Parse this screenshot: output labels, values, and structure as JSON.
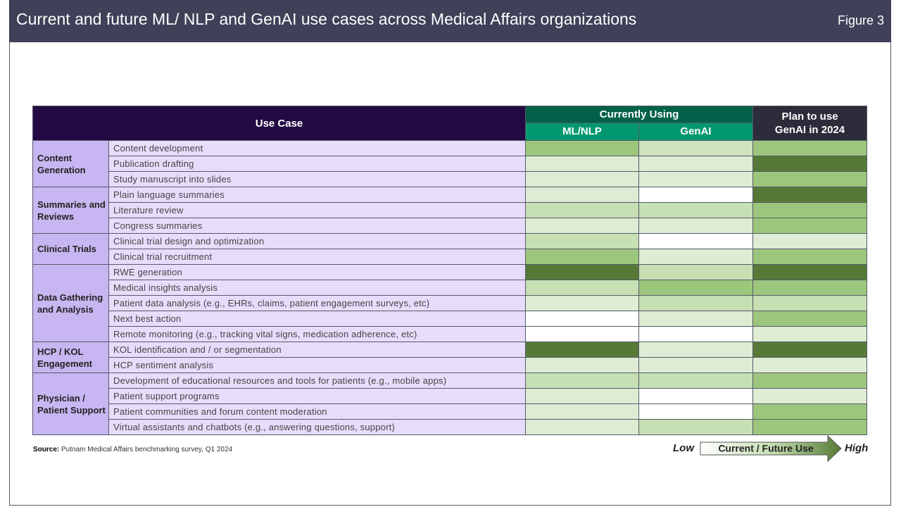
{
  "header": {
    "title": "Current and future ML/ NLP and GenAI use cases across Medical Affairs organizations",
    "figure": "Figure 3"
  },
  "table": {
    "header": {
      "use_case": "Use Case",
      "currently_using": "Currently Using",
      "ml_nlp": "ML/NLP",
      "genai": "GenAI",
      "plan": "Plan to use GenAI in 2024"
    },
    "groups": [
      {
        "name": "Content Generation",
        "rows": [
          {
            "use_case": "Content development",
            "ml_nlp": "#9dc67d",
            "genai": "#cfe3bf",
            "plan": "#9dc67d"
          },
          {
            "use_case": "Publication  drafting",
            "ml_nlp": "#deecd3",
            "genai": "#deecd3",
            "plan": "#567a36"
          },
          {
            "use_case": "Study manuscript into slides",
            "ml_nlp": "#deecd3",
            "genai": "#deecd3",
            "plan": "#9dc67d"
          }
        ]
      },
      {
        "name": "Summaries and Reviews",
        "rows": [
          {
            "use_case": "Plain language summaries",
            "ml_nlp": "#deecd3",
            "genai": "#ffffff",
            "plan": "#567a36"
          },
          {
            "use_case": "Literature review",
            "ml_nlp": "#c6dfb3",
            "genai": "#c6dfb3",
            "plan": "#9dc67d"
          },
          {
            "use_case": "Congress summaries",
            "ml_nlp": "#deecd3",
            "genai": "#deecd3",
            "plan": "#9dc67d"
          }
        ]
      },
      {
        "name": "Clinical Trials",
        "rows": [
          {
            "use_case": "Clinical  trial design  and optimization",
            "ml_nlp": "#c6dfb3",
            "genai": "#ffffff",
            "plan": "#deecd3"
          },
          {
            "use_case": "Clinical trial recruitment",
            "ml_nlp": "#9dc67d",
            "genai": "#deecd3",
            "plan": "#9dc67d"
          }
        ]
      },
      {
        "name": "Data Gathering and Analysis",
        "rows": [
          {
            "use_case": "RWE  generation",
            "ml_nlp": "#567a36",
            "genai": "#c6dfb3",
            "plan": "#567a36"
          },
          {
            "use_case": "Medical insights analysis",
            "ml_nlp": "#c6dfb3",
            "genai": "#9dc67d",
            "plan": "#9dc67d"
          },
          {
            "use_case": "Patient data analysis (e.g., EHRs, claims,  patient engagement surveys, etc)",
            "ml_nlp": "#deecd3",
            "genai": "#c6dfb3",
            "plan": "#c6dfb3"
          },
          {
            "use_case": "Next best action",
            "ml_nlp": "#ffffff",
            "genai": "#deecd3",
            "plan": "#9dc67d"
          },
          {
            "use_case": "Remote monitoring  (e.g., tracking vital signs,  medication  adherence, etc)",
            "ml_nlp": "#ffffff",
            "genai": "#ffffff",
            "plan": "#deecd3"
          }
        ]
      },
      {
        "name": "HCP / KOL Engagement",
        "rows": [
          {
            "use_case": "KOL identification  and / or segmentation",
            "ml_nlp": "#567a36",
            "genai": "#deecd3",
            "plan": "#567a36"
          },
          {
            "use_case": "HCP sentiment analysis",
            "ml_nlp": "#deecd3",
            "genai": "#deecd3",
            "plan": "#deecd3"
          }
        ]
      },
      {
        "name": "Physician / Patient Support",
        "rows": [
          {
            "use_case": "Development of educational resources and tools for patients (e.g., mobile apps)",
            "ml_nlp": "#c6dfb3",
            "genai": "#c6dfb3",
            "plan": "#9dc67d"
          },
          {
            "use_case": "Patient support programs",
            "ml_nlp": "#deecd3",
            "genai": "#ffffff",
            "plan": "#deecd3"
          },
          {
            "use_case": "Patient communities  and forum content moderation",
            "ml_nlp": "#deecd3",
            "genai": "#ffffff",
            "plan": "#9dc67d"
          },
          {
            "use_case": "Virtual assistants  and chatbots  (e.g., answering  questions,  support)",
            "ml_nlp": "#deecd3",
            "genai": "#c6dfb3",
            "plan": "#9dc67d"
          }
        ]
      }
    ]
  },
  "source": {
    "label": "Source:",
    "text": "Putnam Medical Affairs benchmarking survey, Q1 2024"
  },
  "legend": {
    "low": "Low",
    "label": "Current / Future Use",
    "high": "High"
  }
}
